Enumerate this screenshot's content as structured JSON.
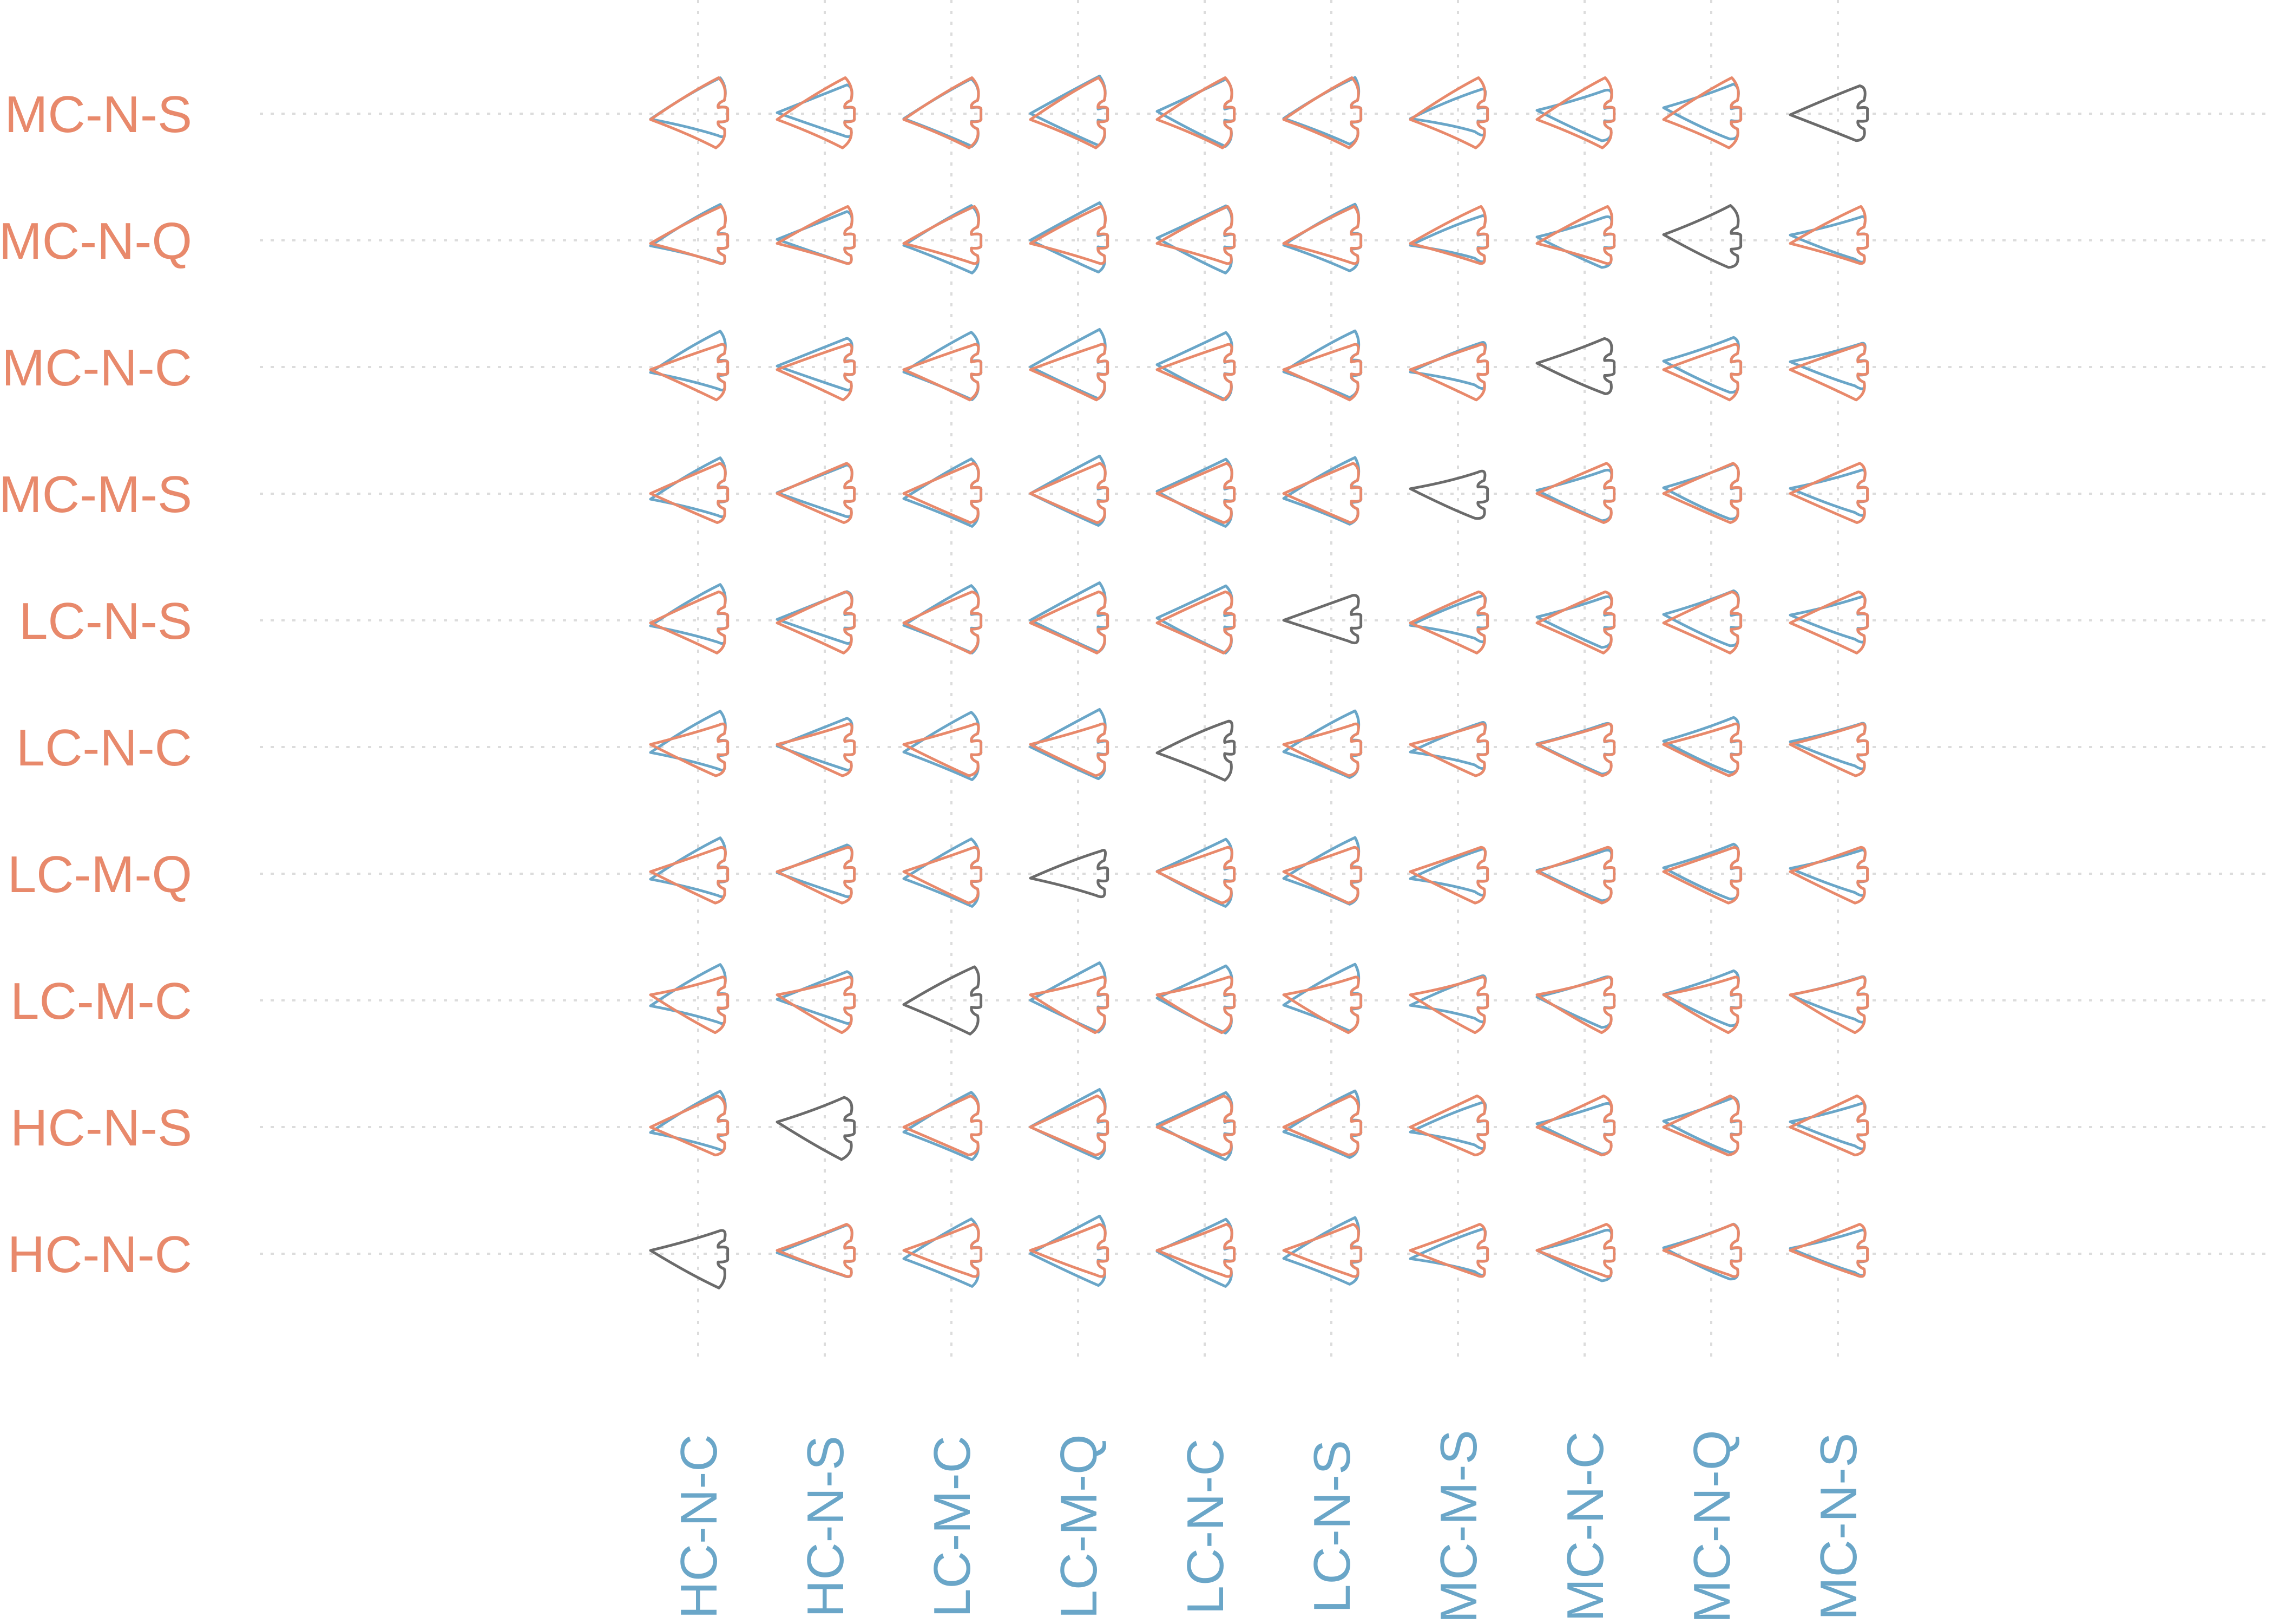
{
  "chart_data": {
    "type": "other",
    "subtype": "pairwise-shape-outline-matrix",
    "row_labels": [
      "MC-N-S",
      "MC-N-Q",
      "MC-N-C",
      "MC-M-S",
      "LC-N-S",
      "LC-N-C",
      "LC-M-Q",
      "LC-M-C",
      "HC-N-S",
      "HC-N-C"
    ],
    "col_labels": [
      "HC-N-C",
      "HC-N-S",
      "LC-M-C",
      "LC-M-Q",
      "LC-N-C",
      "LC-N-S",
      "MC-M-S",
      "MC-N-C",
      "MC-N-Q",
      "MC-N-S"
    ],
    "grid": true,
    "grid_style": "dotted",
    "colors": {
      "row_group": "#e8896b",
      "col_group": "#6aa6c8",
      "diagonal": "#6b6b6b",
      "grid": "#dcdcdc"
    }
  }
}
